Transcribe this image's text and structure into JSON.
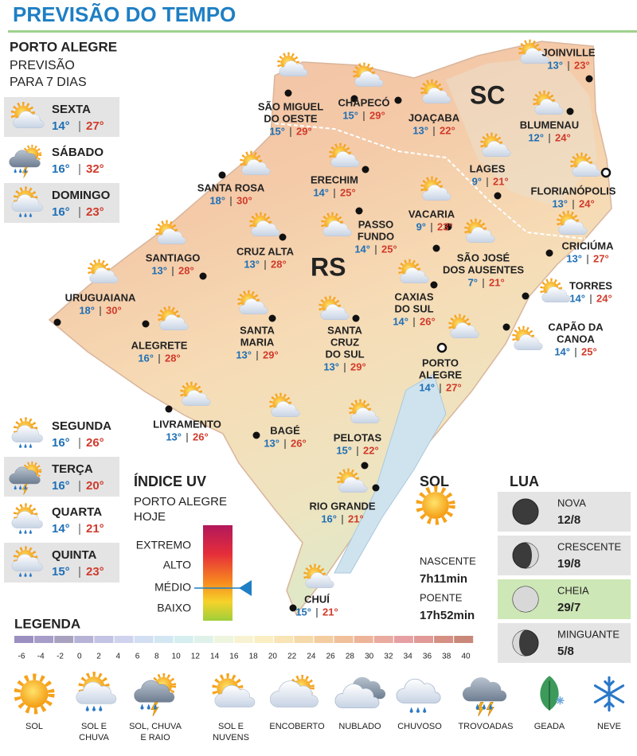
{
  "header": {
    "title": "PREVISÃO DO TEMPO"
  },
  "forecast": {
    "city": "PORTO ALEGRE",
    "subtitle": [
      "PREVISÃO",
      "PARA 7 DIAS"
    ],
    "days": [
      {
        "day": "SEXTA",
        "min": "14°",
        "max": "27°"
      },
      {
        "day": "SÁBADO",
        "min": "16°",
        "max": "32°"
      },
      {
        "day": "DOMINGO",
        "min": "16°",
        "max": "23°"
      },
      {
        "day": "SEGUNDA",
        "min": "16°",
        "max": "26°"
      },
      {
        "day": "TERÇA",
        "min": "16°",
        "max": "20°"
      },
      {
        "day": "QUARTA",
        "min": "14°",
        "max": "21°"
      },
      {
        "day": "QUINTA",
        "min": "15°",
        "max": "23°"
      }
    ]
  },
  "map": {
    "regions": [
      "SC",
      "RS"
    ],
    "cities": [
      {
        "name": [
          "SÃO MIGUEL",
          "DO OESTE"
        ],
        "min": "15°",
        "max": "29°"
      },
      {
        "name": [
          "CHAPECÓ"
        ],
        "min": "15°",
        "max": "29°"
      },
      {
        "name": [
          "JOAÇABA"
        ],
        "min": "13°",
        "max": "22°"
      },
      {
        "name": [
          "JOINVILLE"
        ],
        "min": "13°",
        "max": "23°"
      },
      {
        "name": [
          "BLUMENAU"
        ],
        "min": "12°",
        "max": "24°"
      },
      {
        "name": [
          "LAGES"
        ],
        "min": "9°",
        "max": "21°"
      },
      {
        "name": [
          "FLORIANÓPOLIS"
        ],
        "min": "13°",
        "max": "24°"
      },
      {
        "name": [
          "ERECHIM"
        ],
        "min": "14°",
        "max": "25°"
      },
      {
        "name": [
          "SANTA ROSA"
        ],
        "min": "18°",
        "max": "30°"
      },
      {
        "name": [
          "PASSO",
          "FUNDO"
        ],
        "min": "14°",
        "max": "25°"
      },
      {
        "name": [
          "VACARIA"
        ],
        "min": "9°",
        "max": "23°"
      },
      {
        "name": [
          "CRICIÚMA"
        ],
        "min": "13°",
        "max": "27°"
      },
      {
        "name": [
          "SANTIAGO"
        ],
        "min": "13°",
        "max": "28°"
      },
      {
        "name": [
          "CRUZ ALTA"
        ],
        "min": "13°",
        "max": "28°"
      },
      {
        "name": [
          "SÃO JOSÉ",
          "DOS AUSENTES"
        ],
        "min": "7°",
        "max": "21°"
      },
      {
        "name": [
          "URUGUAIANA"
        ],
        "min": "18°",
        "max": "30°"
      },
      {
        "name": [
          "CAXIAS",
          "DO SUL"
        ],
        "min": "14°",
        "max": "26°"
      },
      {
        "name": [
          "TORRES"
        ],
        "min": "14°",
        "max": "24°"
      },
      {
        "name": [
          "ALEGRETE"
        ],
        "min": "16°",
        "max": "28°"
      },
      {
        "name": [
          "SANTA",
          "MARIA"
        ],
        "min": "13°",
        "max": "29°"
      },
      {
        "name": [
          "SANTA",
          "CRUZ",
          "DO SUL"
        ],
        "min": "13°",
        "max": "29°"
      },
      {
        "name": [
          "CAPÃO DA",
          "CANOA"
        ],
        "min": "14°",
        "max": "25°"
      },
      {
        "name": [
          "PORTO",
          "ALEGRE"
        ],
        "min": "14°",
        "max": "27°"
      },
      {
        "name": [
          "LIVRAMENTO"
        ],
        "min": "13°",
        "max": "26°"
      },
      {
        "name": [
          "BAGÉ"
        ],
        "min": "13°",
        "max": "26°"
      },
      {
        "name": [
          "PELOTAS"
        ],
        "min": "15°",
        "max": "22°"
      },
      {
        "name": [
          "RIO GRANDE"
        ],
        "min": "16°",
        "max": "21°"
      },
      {
        "name": [
          "CHUÍ"
        ],
        "min": "15°",
        "max": "21°"
      }
    ]
  },
  "uv": {
    "title": "ÍNDICE UV",
    "subtitle": [
      "PORTO ALEGRE",
      "HOJE"
    ],
    "levels": [
      "EXTREMO",
      "ALTO",
      "MÉDIO",
      "BAIXO"
    ]
  },
  "sun": {
    "title": "SOL",
    "sunrise_label": "NASCENTE",
    "sunrise": "7h11min",
    "sunset_label": "POENTE",
    "sunset": "17h52min"
  },
  "moon": {
    "title": "LUA",
    "phases": [
      {
        "name": "NOVA",
        "date": "12/8"
      },
      {
        "name": "CRESCENTE",
        "date": "19/8"
      },
      {
        "name": "CHEIA",
        "date": "29/7"
      },
      {
        "name": "MINGUANTE",
        "date": "5/8"
      }
    ]
  },
  "legend": {
    "title": "LEGENDA",
    "scale": [
      -6,
      -4,
      -2,
      0,
      2,
      4,
      6,
      8,
      10,
      12,
      14,
      16,
      18,
      20,
      22,
      24,
      26,
      28,
      30,
      32,
      34,
      36,
      38,
      40
    ],
    "colors": [
      "#9b8fc0",
      "#a79dc8",
      "#a8a2c0",
      "#b7b3d6",
      "#c3c3e3",
      "#cfd3ee",
      "#d2def2",
      "#d3e7f3",
      "#d6eef0",
      "#dff2ea",
      "#eef5df",
      "#f7f3d2",
      "#faeec3",
      "#f8e4b5",
      "#f5d9a8",
      "#f3cda0",
      "#f0c09a",
      "#edb49a",
      "#e9aa9f",
      "#e6a0a3",
      "#e19a97",
      "#d58f83",
      "#c9887a"
    ]
  },
  "icons": {
    "labels": [
      [
        "SOL"
      ],
      [
        "SOL E",
        "CHUVA"
      ],
      [
        "SOL, CHUVA",
        "E RAIO"
      ],
      [
        "SOL E",
        "NUVENS"
      ],
      [
        "ENCOBERTO"
      ],
      [
        "NUBLADO"
      ],
      [
        "CHUVOSO"
      ],
      [
        "TROVOADAS"
      ],
      [
        "GEADA"
      ],
      [
        "NEVE"
      ]
    ]
  }
}
